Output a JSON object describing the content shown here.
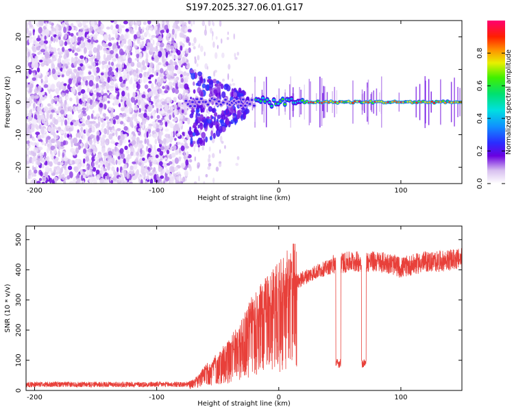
{
  "title": "S197.2025.327.06.01.G17",
  "chart_data": [
    {
      "type": "heatmap",
      "xlabel": "Height of straight line (km)",
      "ylabel": "Frequency (Hz)",
      "xlim": [
        -207,
        150
      ],
      "ylim": [
        -25,
        25
      ],
      "xticks": [
        -200,
        -100,
        0,
        100
      ],
      "xtick_labels": [
        "-200",
        "-100",
        "0",
        "100"
      ],
      "yticks": [
        -20,
        -10,
        0,
        10,
        20
      ],
      "ytick_labels": [
        "-20",
        "-10",
        "0",
        "10",
        "20"
      ],
      "colorbar": {
        "label": "Normalized spectral amplitude",
        "range": [
          0,
          1
        ],
        "ticks": [
          0,
          0.2,
          0.4,
          0.6,
          0.8
        ],
        "tick_labels": [
          "0.0",
          "0.2",
          "0.4",
          "0.6",
          "0.8"
        ]
      },
      "regions": [
        {
          "name": "noise",
          "x_range": [
            -207,
            -73
          ],
          "freq_range": [
            -25,
            25
          ],
          "amplitude": [
            0.02,
            0.15
          ]
        },
        {
          "name": "transition",
          "x_range": [
            -73,
            -25
          ],
          "freq_range": [
            -18,
            6
          ],
          "amplitude": [
            0.1,
            0.35
          ]
        },
        {
          "name": "carrier",
          "x_range": [
            -25,
            150
          ],
          "freq_center": 0,
          "amplitude": [
            0.3,
            1.0
          ]
        }
      ]
    },
    {
      "type": "line",
      "xlabel": "Height of straight line (km)",
      "ylabel": "SNR (10 * v/v)",
      "xlim": [
        -207,
        150
      ],
      "ylim": [
        0,
        545
      ],
      "xticks": [
        -200,
        -100,
        0,
        100
      ],
      "xtick_labels": [
        "-200",
        "-100",
        "0",
        "100"
      ],
      "yticks": [
        0,
        100,
        200,
        300,
        400,
        500
      ],
      "ytick_labels": [
        "0",
        "100",
        "200",
        "300",
        "400",
        "500"
      ],
      "color": "#e8403a",
      "series": [
        {
          "name": "SNR",
          "envelope_x": [
            -207,
            -150,
            -100,
            -75,
            -70,
            -60,
            -50,
            -40,
            -30,
            -20,
            -10,
            0,
            10,
            20,
            30,
            40,
            44,
            50,
            60,
            70,
            80,
            90,
            100,
            110,
            120,
            130,
            140,
            150
          ],
          "envelope_y": [
            20,
            20,
            20,
            20,
            25,
            60,
            90,
            120,
            180,
            230,
            270,
            300,
            340,
            370,
            390,
            405,
            410,
            415,
            420,
            420,
            420,
            415,
            400,
            410,
            420,
            420,
            425,
            430
          ],
          "dropout_level": 90,
          "dropout_start_km": 44
        }
      ]
    }
  ]
}
